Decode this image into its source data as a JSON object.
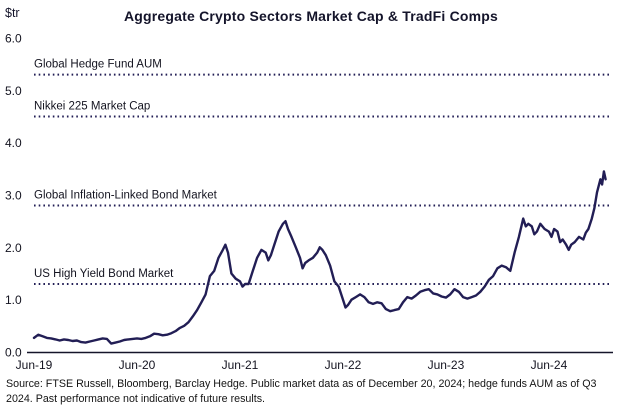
{
  "header": {
    "title": "Aggregate Crypto Sectors Market Cap & TradFi Comps"
  },
  "chart_data": {
    "type": "line",
    "title": "Aggregate Crypto Sectors Market Cap & TradFi Comps",
    "y_unit": "$tr",
    "ylim": [
      0,
      6
    ],
    "xlim": [
      0,
      67
    ],
    "x_unit": "months since Jun-2019",
    "grid": false,
    "legend": "none",
    "line_color": "#221e55",
    "text_color": "#141420",
    "y_ticks": [
      {
        "pos": 0,
        "label": "0.0"
      },
      {
        "pos": 1,
        "label": "1.0"
      },
      {
        "pos": 2,
        "label": "2.0"
      },
      {
        "pos": 3,
        "label": "3.0"
      },
      {
        "pos": 4,
        "label": "4.0"
      },
      {
        "pos": 5,
        "label": "5.0"
      },
      {
        "pos": 6,
        "label": "6.0"
      }
    ],
    "x_ticks": [
      {
        "pos": 0,
        "label": "Jun-19"
      },
      {
        "pos": 12,
        "label": "Jun-20"
      },
      {
        "pos": 24,
        "label": "Jun-21"
      },
      {
        "pos": 36,
        "label": "Jun-22"
      },
      {
        "pos": 48,
        "label": "Jun-23"
      },
      {
        "pos": 60,
        "label": "Jun-24"
      }
    ],
    "reference_lines": [
      {
        "label": "Global Hedge Fund AUM",
        "value": 5.3
      },
      {
        "label": "Nikkei 225 Market Cap",
        "value": 4.5
      },
      {
        "label": "Global Inflation-Linked Bond Market",
        "value": 2.8
      },
      {
        "label": "US High Yield Bond Market",
        "value": 1.3
      }
    ],
    "series": [
      {
        "name": "Aggregate Crypto Sectors Market Cap",
        "points": [
          [
            0,
            0.27
          ],
          [
            0.5,
            0.33
          ],
          [
            1,
            0.3
          ],
          [
            1.5,
            0.27
          ],
          [
            2,
            0.26
          ],
          [
            2.5,
            0.24
          ],
          [
            3,
            0.22
          ],
          [
            3.5,
            0.24
          ],
          [
            4,
            0.23
          ],
          [
            4.5,
            0.21
          ],
          [
            5,
            0.22
          ],
          [
            5.5,
            0.19
          ],
          [
            6,
            0.18
          ],
          [
            6.5,
            0.2
          ],
          [
            7,
            0.22
          ],
          [
            7.5,
            0.24
          ],
          [
            8,
            0.26
          ],
          [
            8.5,
            0.25
          ],
          [
            9,
            0.16
          ],
          [
            9.5,
            0.18
          ],
          [
            10,
            0.2
          ],
          [
            10.5,
            0.23
          ],
          [
            11,
            0.24
          ],
          [
            11.5,
            0.25
          ],
          [
            12,
            0.26
          ],
          [
            12.5,
            0.25
          ],
          [
            13,
            0.27
          ],
          [
            13.5,
            0.3
          ],
          [
            14,
            0.35
          ],
          [
            14.5,
            0.34
          ],
          [
            15,
            0.32
          ],
          [
            15.5,
            0.33
          ],
          [
            16,
            0.36
          ],
          [
            16.5,
            0.4
          ],
          [
            17,
            0.46
          ],
          [
            17.5,
            0.5
          ],
          [
            18,
            0.57
          ],
          [
            18.5,
            0.68
          ],
          [
            19,
            0.8
          ],
          [
            19.5,
            0.95
          ],
          [
            20,
            1.1
          ],
          [
            20.5,
            1.45
          ],
          [
            21,
            1.55
          ],
          [
            21.5,
            1.8
          ],
          [
            22,
            1.95
          ],
          [
            22.3,
            2.05
          ],
          [
            22.6,
            1.9
          ],
          [
            23,
            1.5
          ],
          [
            23.5,
            1.4
          ],
          [
            24,
            1.35
          ],
          [
            24.3,
            1.25
          ],
          [
            24.6,
            1.3
          ],
          [
            25,
            1.3
          ],
          [
            25.5,
            1.55
          ],
          [
            26,
            1.8
          ],
          [
            26.5,
            1.95
          ],
          [
            27,
            1.9
          ],
          [
            27.3,
            1.75
          ],
          [
            27.6,
            1.85
          ],
          [
            28,
            2.05
          ],
          [
            28.5,
            2.3
          ],
          [
            29,
            2.45
          ],
          [
            29.3,
            2.5
          ],
          [
            29.6,
            2.35
          ],
          [
            30,
            2.2
          ],
          [
            30.5,
            2.0
          ],
          [
            31,
            1.8
          ],
          [
            31.3,
            1.6
          ],
          [
            31.6,
            1.7
          ],
          [
            32,
            1.75
          ],
          [
            32.5,
            1.8
          ],
          [
            33,
            1.9
          ],
          [
            33.3,
            2.0
          ],
          [
            33.6,
            1.95
          ],
          [
            34,
            1.85
          ],
          [
            34.5,
            1.65
          ],
          [
            35,
            1.35
          ],
          [
            35.5,
            1.25
          ],
          [
            36,
            1.0
          ],
          [
            36.3,
            0.85
          ],
          [
            36.6,
            0.9
          ],
          [
            37,
            1.0
          ],
          [
            37.5,
            1.05
          ],
          [
            38,
            1.1
          ],
          [
            38.5,
            1.05
          ],
          [
            39,
            0.95
          ],
          [
            39.5,
            0.92
          ],
          [
            40,
            0.95
          ],
          [
            40.5,
            0.93
          ],
          [
            41,
            0.82
          ],
          [
            41.5,
            0.78
          ],
          [
            42,
            0.8
          ],
          [
            42.5,
            0.82
          ],
          [
            43,
            0.95
          ],
          [
            43.5,
            1.05
          ],
          [
            44,
            1.02
          ],
          [
            44.5,
            1.08
          ],
          [
            45,
            1.15
          ],
          [
            45.5,
            1.18
          ],
          [
            46,
            1.2
          ],
          [
            46.5,
            1.12
          ],
          [
            47,
            1.1
          ],
          [
            47.5,
            1.06
          ],
          [
            48,
            1.04
          ],
          [
            48.5,
            1.1
          ],
          [
            49,
            1.2
          ],
          [
            49.5,
            1.15
          ],
          [
            50,
            1.05
          ],
          [
            50.5,
            1.02
          ],
          [
            51,
            1.05
          ],
          [
            51.5,
            1.08
          ],
          [
            52,
            1.15
          ],
          [
            52.5,
            1.25
          ],
          [
            53,
            1.38
          ],
          [
            53.5,
            1.45
          ],
          [
            54,
            1.6
          ],
          [
            54.5,
            1.65
          ],
          [
            55,
            1.62
          ],
          [
            55.5,
            1.55
          ],
          [
            56,
            1.9
          ],
          [
            56.5,
            2.2
          ],
          [
            57,
            2.55
          ],
          [
            57.3,
            2.4
          ],
          [
            57.6,
            2.45
          ],
          [
            58,
            2.4
          ],
          [
            58.3,
            2.25
          ],
          [
            58.6,
            2.3
          ],
          [
            59,
            2.45
          ],
          [
            59.5,
            2.35
          ],
          [
            60,
            2.3
          ],
          [
            60.3,
            2.2
          ],
          [
            60.6,
            2.35
          ],
          [
            61,
            2.3
          ],
          [
            61.3,
            2.1
          ],
          [
            61.6,
            2.15
          ],
          [
            62,
            2.05
          ],
          [
            62.3,
            1.95
          ],
          [
            62.6,
            2.05
          ],
          [
            63,
            2.1
          ],
          [
            63.5,
            2.2
          ],
          [
            64,
            2.15
          ],
          [
            64.3,
            2.28
          ],
          [
            64.6,
            2.35
          ],
          [
            65,
            2.55
          ],
          [
            65.3,
            2.75
          ],
          [
            65.6,
            3.05
          ],
          [
            66,
            3.3
          ],
          [
            66.2,
            3.2
          ],
          [
            66.4,
            3.45
          ],
          [
            66.6,
            3.3
          ]
        ]
      }
    ]
  },
  "footer": {
    "source_text": "Source: FTSE Russell, Bloomberg, Barclay Hedge. Public market data as of December 20, 2024; hedge funds AUM as of Q3 2024. Past performance not indicative of future results."
  }
}
